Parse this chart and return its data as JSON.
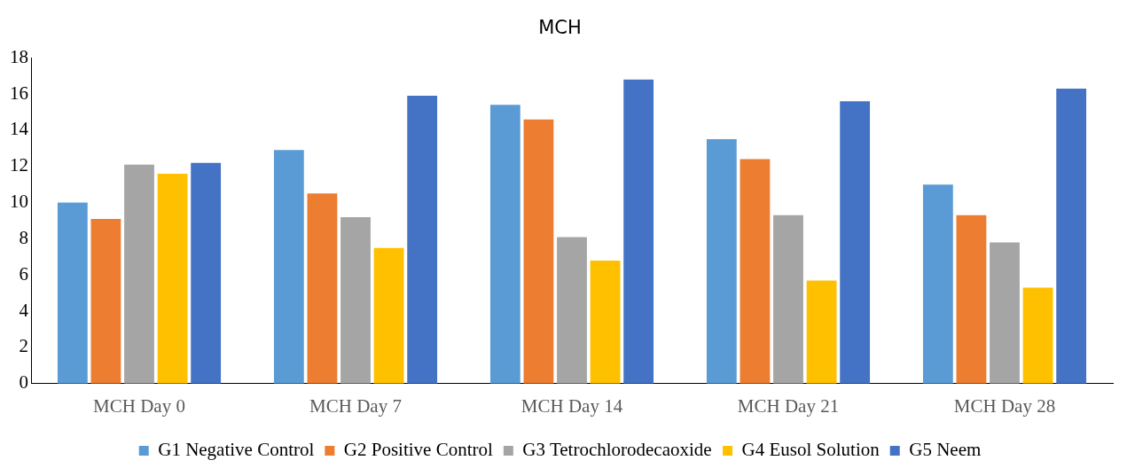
{
  "chart_data": {
    "type": "bar",
    "title": "MCH",
    "categories": [
      "MCH Day 0",
      "MCH Day 7",
      "MCH Day 14",
      "MCH Day 21",
      "MCH Day 28"
    ],
    "series": [
      {
        "name": "G1 Negative Control",
        "color": "#5b9bd5",
        "values": [
          10.0,
          12.9,
          15.4,
          13.5,
          11.0
        ]
      },
      {
        "name": "G2 Positive Control",
        "color": "#ed7d31",
        "values": [
          9.1,
          10.5,
          14.6,
          12.4,
          9.3
        ]
      },
      {
        "name": "G3 Tetrochlorodecaoxide",
        "color": "#a5a5a5",
        "values": [
          12.1,
          9.2,
          8.1,
          9.3,
          7.8
        ]
      },
      {
        "name": "G4 Eusol Solution",
        "color": "#ffc000",
        "values": [
          11.6,
          7.5,
          6.8,
          5.7,
          5.3
        ]
      },
      {
        "name": "G5 Neem",
        "color": "#4472c4",
        "values": [
          12.2,
          15.9,
          16.8,
          15.6,
          16.3
        ]
      }
    ],
    "ylim": [
      0,
      18
    ],
    "yticks": [
      0,
      2,
      4,
      6,
      8,
      10,
      12,
      14,
      16,
      18
    ],
    "grid": false,
    "legend": "bottom"
  }
}
